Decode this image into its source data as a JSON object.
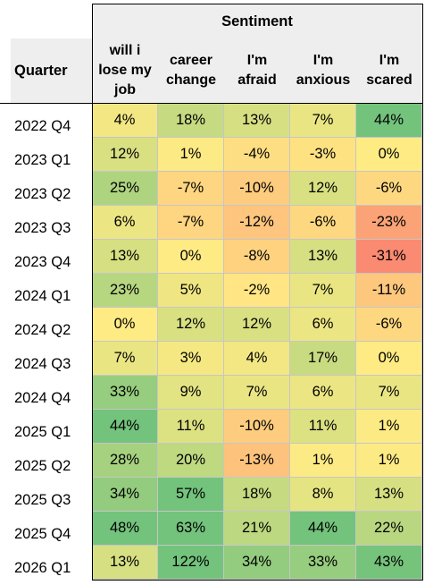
{
  "chart_data": {
    "type": "heatmap",
    "title": "",
    "row_header": "Quarter",
    "column_group_label": "Sentiment",
    "columns": [
      "will i\nlose my\njob",
      "career\nchange",
      "I'm\nafraid",
      "I'm\nanxious",
      "I'm\nscared"
    ],
    "rows": [
      "2022 Q4",
      "2023 Q1",
      "2023 Q2",
      "2023 Q3",
      "2023 Q4",
      "2024 Q1",
      "2024 Q2",
      "2024 Q3",
      "2024 Q4",
      "2025 Q1",
      "2025 Q2",
      "2025 Q3",
      "2025 Q4",
      "2026 Q1"
    ],
    "values": [
      [
        4,
        18,
        13,
        7,
        44
      ],
      [
        12,
        1,
        -4,
        -3,
        0
      ],
      [
        25,
        -7,
        -10,
        12,
        -6
      ],
      [
        6,
        -7,
        -12,
        -6,
        -23
      ],
      [
        13,
        0,
        -8,
        13,
        -31
      ],
      [
        23,
        5,
        -2,
        7,
        -11
      ],
      [
        0,
        12,
        12,
        6,
        -6
      ],
      [
        7,
        3,
        4,
        17,
        0
      ],
      [
        33,
        9,
        7,
        6,
        7
      ],
      [
        44,
        11,
        -10,
        11,
        1
      ],
      [
        28,
        20,
        -13,
        1,
        1
      ],
      [
        34,
        57,
        18,
        8,
        13
      ],
      [
        48,
        63,
        21,
        44,
        22
      ],
      [
        13,
        122,
        34,
        33,
        43
      ]
    ],
    "value_suffix": "%",
    "colors": {
      "low": "#f8696b",
      "mid": "#ffeb84",
      "high": "#63be7b"
    }
  }
}
